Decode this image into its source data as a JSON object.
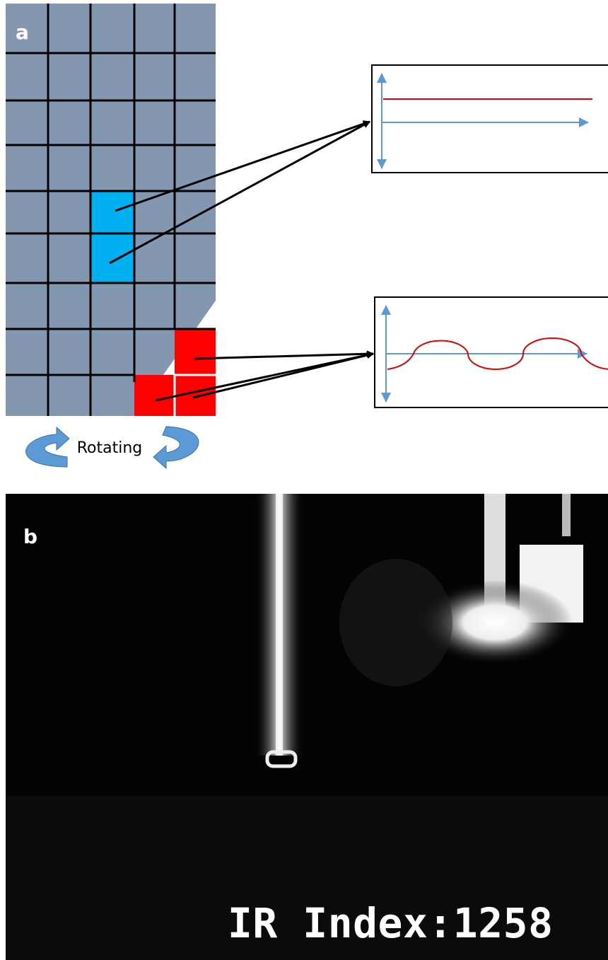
{
  "panel_a": {
    "label": "a",
    "caption": "Rotating"
  },
  "panel_b": {
    "label": "b",
    "overlay": "IR Index:1258"
  }
}
